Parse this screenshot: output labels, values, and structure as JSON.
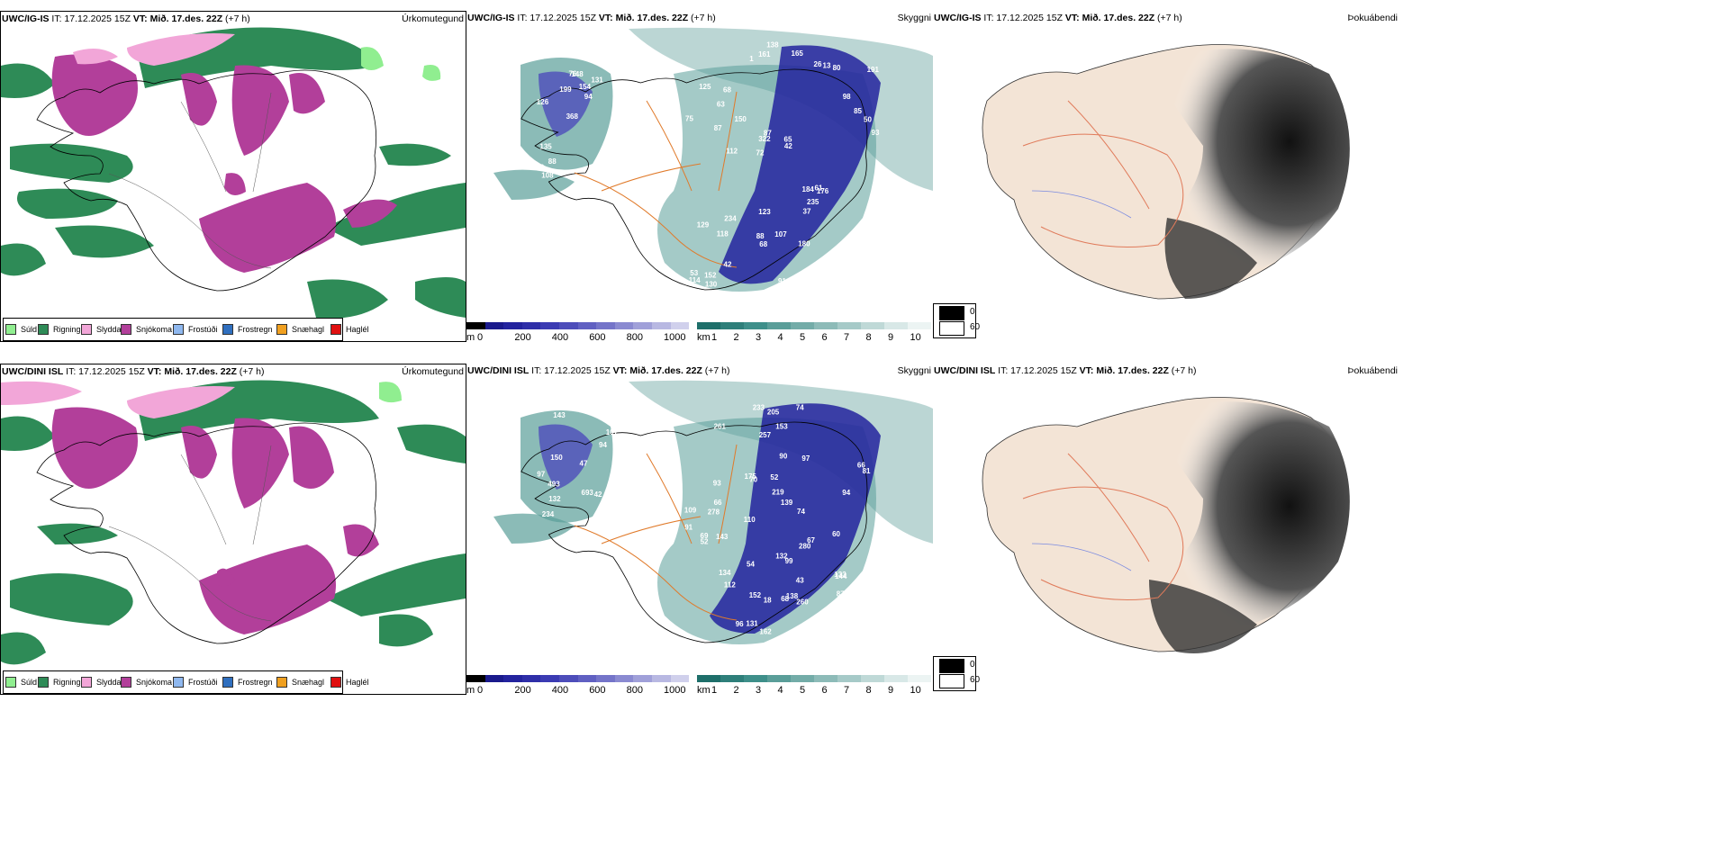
{
  "row_top": {
    "precip": {
      "model": "UWC/IG-IS",
      "it_label": "IT: 17.12.2025 15Z",
      "vt_label": "VT: Mið. 17.des. 22Z",
      "offset": "(+7 h)",
      "right_title": "Úrkomutegund"
    },
    "vis": {
      "model": "UWC/IG-IS",
      "it_label": "IT: 17.12.2025 15Z",
      "vt_label": "VT: Mið. 17.des. 22Z",
      "offset": "(+7 h)",
      "right_title": "Skyggni",
      "labels": [
        "361",
        "126",
        "80",
        "368",
        "131",
        "108",
        "76",
        "154",
        "135",
        "199",
        "116",
        "88",
        "148",
        "94",
        "176",
        "125",
        "161",
        "93",
        "184",
        "85",
        "72",
        "88",
        "322",
        "68",
        "26",
        "234",
        "77",
        "271",
        "61",
        "91",
        "150",
        "87",
        "37",
        "42",
        "50",
        "65",
        "53",
        "68",
        "42",
        "129",
        "98",
        "191",
        "235",
        "180",
        "118",
        "130",
        "114",
        "107",
        "80",
        "138",
        "112",
        "75",
        "63",
        "13",
        "152",
        "165",
        "1",
        "87",
        "42",
        "123"
      ]
    },
    "fog": {
      "model": "UWC/IG-IS",
      "it_label": "IT: 17.12.2025 15Z",
      "vt_label": "VT: Mið. 17.des. 22Z",
      "offset": "(+7 h)",
      "right_title": "Þokuábendi"
    }
  },
  "row_bottom": {
    "precip": {
      "model": "UWC/DINI ISL",
      "it_label": "IT: 17.12.2025 15Z",
      "vt_label": "VT: Mið. 17.des. 22Z",
      "offset": "(+7 h)",
      "right_title": "Úrkomutegund"
    },
    "vis": {
      "model": "UWC/DINI ISL",
      "it_label": "IT: 17.12.2025 15Z",
      "vt_label": "VT: Mið. 17.des. 22Z",
      "offset": "(+7 h)",
      "right_title": "Skyggni",
      "labels": [
        "234",
        "174",
        "143",
        "107",
        "693",
        "150",
        "493",
        "132",
        "73",
        "94",
        "97",
        "84",
        "42",
        "47",
        "162",
        "233",
        "87",
        "109",
        "134",
        "131",
        "260",
        "205",
        "257",
        "139",
        "219",
        "152",
        "69",
        "74",
        "90",
        "67",
        "93",
        "112",
        "138",
        "132",
        "144",
        "52",
        "66",
        "74",
        "97",
        "60",
        "81",
        "153",
        "18",
        "143",
        "91",
        "66",
        "280",
        "68",
        "54",
        "43",
        "70",
        "96",
        "52",
        "94",
        "110",
        "99",
        "175",
        "133",
        "261",
        "278"
      ]
    },
    "fog": {
      "model": "UWC/DINI ISL",
      "it_label": "IT: 17.12.2025 15Z",
      "vt_label": "VT: Mið. 17.des. 22Z",
      "offset": "(+7 h)",
      "right_title": "Þokuábendi"
    }
  },
  "precip_legend": [
    {
      "label": "Súld",
      "color": "#90ee90"
    },
    {
      "label": "Rigning",
      "color": "#2e8b57"
    },
    {
      "label": "Slydda",
      "color": "#f2a6d8"
    },
    {
      "label": "Snjókoma",
      "color": "#b23f9a"
    },
    {
      "label": "Frostúði",
      "color": "#8fb8ef"
    },
    {
      "label": "Frostregn",
      "color": "#2f6fbf"
    },
    {
      "label": "Snæhagl",
      "color": "#f0a020"
    },
    {
      "label": "Haglél",
      "color": "#e01010"
    }
  ],
  "elev_bar": {
    "unit": "m",
    "ticks": [
      "0",
      "200",
      "400",
      "600",
      "800",
      "1000"
    ],
    "colors": [
      "#000000",
      "#1a1a8c",
      "#23239e",
      "#2e2ea8",
      "#3b3bb3",
      "#4d4dba",
      "#6060c2",
      "#7474c9",
      "#8a8ad1",
      "#a0a0d9",
      "#b8b8e2",
      "#d0d0ec"
    ]
  },
  "vis_bar": {
    "unit": "km",
    "ticks": [
      "1",
      "2",
      "3",
      "4",
      "5",
      "6",
      "7",
      "8",
      "9",
      "10"
    ],
    "colors": [
      "#1e6f6a",
      "#2e7f7a",
      "#3e8f8a",
      "#5a9e99",
      "#73aca8",
      "#8dbbb8",
      "#a6cac8",
      "#bfd9d7",
      "#d8e8e7",
      "#ecf4f3"
    ]
  },
  "fog_legend": [
    {
      "label": "0",
      "color": "#000000"
    },
    {
      "label": "60",
      "color": "#ffffff"
    }
  ]
}
